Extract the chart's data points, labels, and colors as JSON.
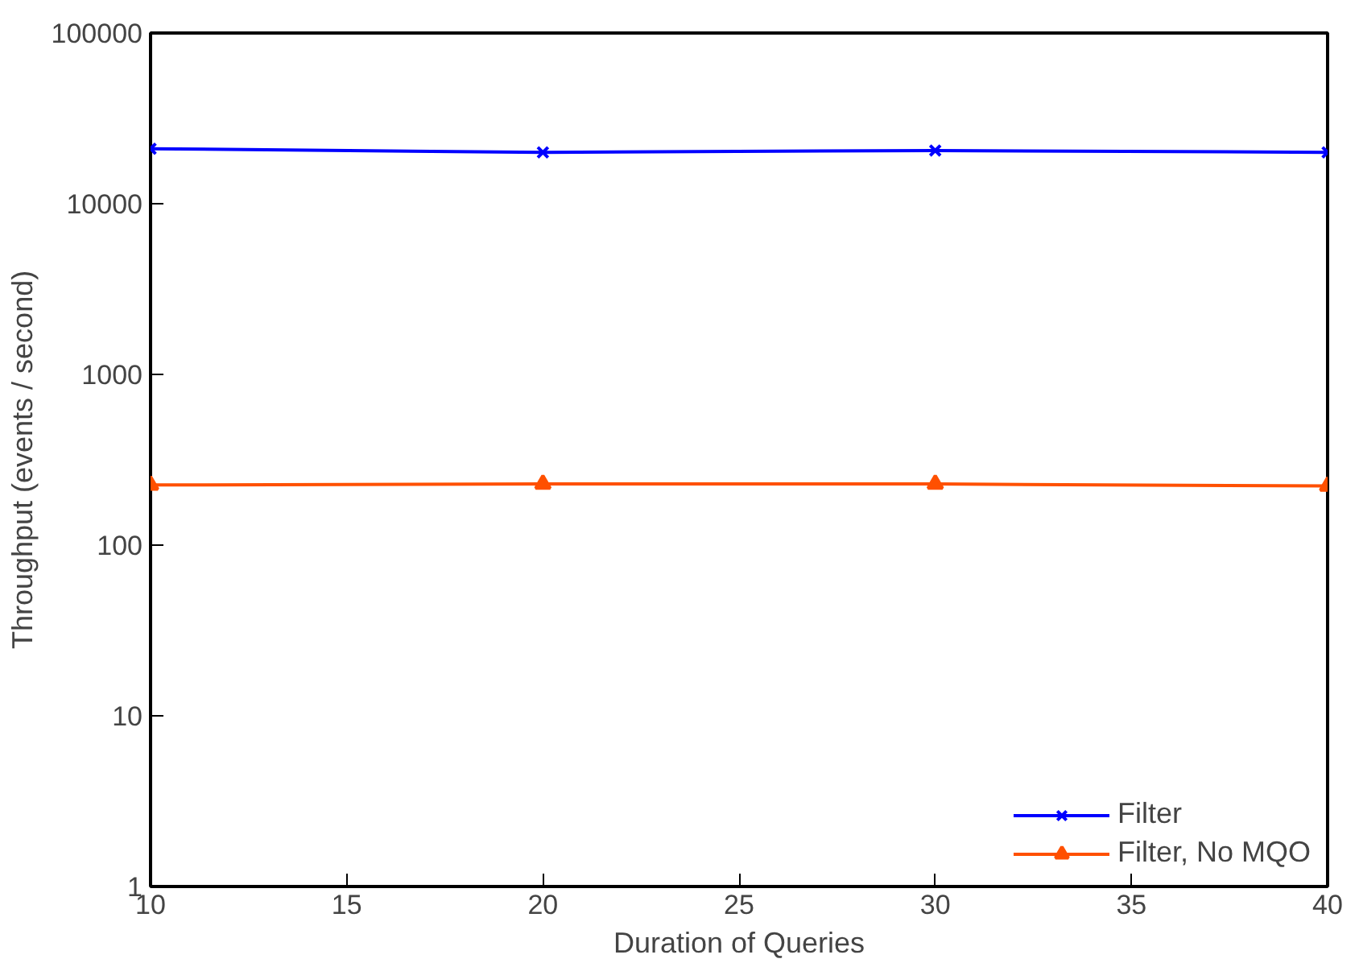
{
  "chart_data": {
    "type": "line",
    "xlabel": "Duration of Queries",
    "ylabel": "Throughput (events / second)",
    "x": [
      10,
      20,
      30,
      40
    ],
    "series": [
      {
        "name": "Filter",
        "color": "#0000ff",
        "marker": "cross",
        "values": [
          21000,
          20000,
          20500,
          20000
        ]
      },
      {
        "name": "Filter, No MQO",
        "color": "#ff5000",
        "marker": "triangle",
        "values": [
          225,
          228,
          228,
          222
        ]
      }
    ],
    "xlim": [
      10,
      40
    ],
    "xticks": [
      10,
      15,
      20,
      25,
      30,
      35,
      40
    ],
    "ylim": [
      1,
      100000
    ],
    "yticks": [
      1,
      10,
      100,
      1000,
      10000,
      100000
    ],
    "log": "y",
    "grid": false,
    "legend": "bottom right"
  }
}
